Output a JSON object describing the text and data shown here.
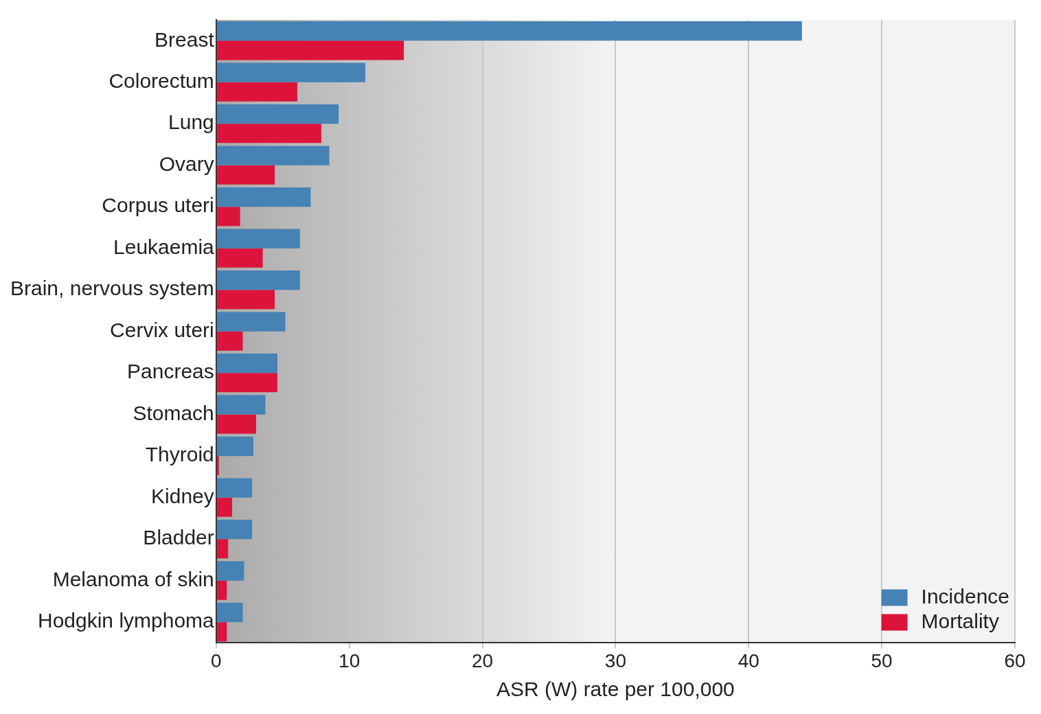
{
  "chart_data": {
    "type": "bar",
    "orientation": "horizontal",
    "xlabel": "ASR (W) rate per 100,000",
    "categories": [
      "Breast",
      "Colorectum",
      "Lung",
      "Ovary",
      "Corpus uteri",
      "Leukaemia",
      "Brain, nervous system",
      "Cervix uteri",
      "Pancreas",
      "Stomach",
      "Thyroid",
      "Kidney",
      "Bladder",
      "Melanoma of skin",
      "Hodgkin lymphoma"
    ],
    "series": [
      {
        "name": "Incidence",
        "color": "#4682b4",
        "values": [
          44.0,
          11.2,
          9.2,
          8.5,
          7.1,
          6.3,
          6.3,
          5.2,
          4.6,
          3.7,
          2.8,
          2.7,
          2.7,
          2.1,
          2.0
        ]
      },
      {
        "name": "Mortality",
        "color": "#dc143c",
        "values": [
          14.1,
          6.1,
          7.9,
          4.4,
          1.8,
          3.5,
          4.4,
          2.0,
          4.6,
          3.0,
          0.2,
          1.2,
          0.9,
          0.8,
          0.8
        ]
      }
    ],
    "xlim": [
      0,
      60
    ],
    "xticks": [
      0,
      10,
      20,
      30,
      40,
      50,
      60
    ],
    "grid": "x",
    "legend": "bottom right"
  }
}
